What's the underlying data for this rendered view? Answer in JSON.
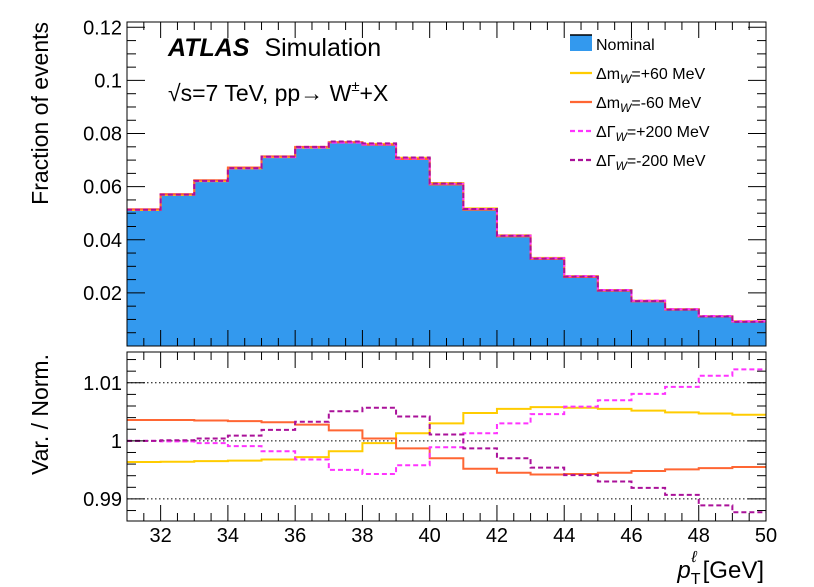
{
  "chart_data": [
    {
      "type": "histogram",
      "panel": "main",
      "ylabel": "Fraction of events",
      "ylim": [
        0.0,
        0.122
      ],
      "yticks": [
        0.02,
        0.04,
        0.06,
        0.08,
        0.1,
        0.12
      ],
      "ytick_labels": [
        "0.02",
        "0.04",
        "0.06",
        "0.08",
        "0.1",
        "0.12"
      ],
      "xlim": [
        31,
        50
      ],
      "bin_edges": [
        31,
        32,
        33,
        34,
        35,
        36,
        37,
        38,
        39,
        40,
        41,
        42,
        43,
        44,
        45,
        46,
        47,
        48,
        49,
        50
      ],
      "atlas_label": "ATLAS",
      "atlas_sub": "Simulation",
      "energy_sqrt": "√",
      "energy_label": "s=7 TeV, pp→ W",
      "energy_sup": "±",
      "energy_tail": "+X",
      "series": [
        {
          "name": "Nominal",
          "color": "#3399ee",
          "style": "fill",
          "values": [
            0.0513,
            0.057,
            0.0622,
            0.067,
            0.0712,
            0.0748,
            0.0765,
            0.0758,
            0.0705,
            0.061,
            0.0515,
            0.0415,
            0.033,
            0.0262,
            0.021,
            0.017,
            0.0138,
            0.0112,
            0.0092
          ]
        },
        {
          "name": "mW_plus",
          "color": "#ffcc00",
          "style": "solid",
          "values": [
            0.0512,
            0.0569,
            0.0621,
            0.0669,
            0.0711,
            0.0747,
            0.0767,
            0.0761,
            0.0709,
            0.0614,
            0.0518,
            0.0417,
            0.0332,
            0.0263,
            0.0211,
            0.0171,
            0.0139,
            0.0112,
            0.0093
          ]
        },
        {
          "name": "mW_minus",
          "color": "#ff6633",
          "style": "solid",
          "values": [
            0.0515,
            0.0572,
            0.0624,
            0.0672,
            0.0714,
            0.075,
            0.0767,
            0.0758,
            0.0704,
            0.0608,
            0.0513,
            0.0413,
            0.0328,
            0.026,
            0.0208,
            0.0168,
            0.0137,
            0.0111,
            0.0092
          ]
        },
        {
          "name": "Gamma_plus",
          "color": "#ff33ff",
          "style": "dashed",
          "values": [
            0.0513,
            0.057,
            0.0621,
            0.0669,
            0.0711,
            0.0747,
            0.0766,
            0.0759,
            0.0706,
            0.0611,
            0.0516,
            0.0416,
            0.0331,
            0.0263,
            0.0211,
            0.0171,
            0.0139,
            0.0113,
            0.0093
          ]
        },
        {
          "name": "Gamma_minus",
          "color": "#aa1199",
          "style": "dashed",
          "values": [
            0.0513,
            0.057,
            0.0622,
            0.067,
            0.0713,
            0.075,
            0.077,
            0.0763,
            0.071,
            0.0612,
            0.0516,
            0.0415,
            0.0329,
            0.0261,
            0.0209,
            0.0169,
            0.0137,
            0.0111,
            0.0091
          ]
        }
      ],
      "legend": [
        {
          "series": "Nominal",
          "label": "Nominal"
        },
        {
          "series": "mW_plus",
          "label": "Δm",
          "sub": "W",
          "tail": "=+60 MeV"
        },
        {
          "series": "mW_minus",
          "label": "Δm",
          "sub": "W",
          "tail": "=-60 MeV"
        },
        {
          "series": "Gamma_plus",
          "label": "ΔΓ",
          "sub": "W",
          "tail": "=+200 MeV"
        },
        {
          "series": "Gamma_minus",
          "label": "ΔΓ",
          "sub": "W",
          "tail": "=-200 MeV"
        }
      ],
      "legend_position": "top-right"
    },
    {
      "type": "ratio",
      "panel": "ratio",
      "ylabel": "Var. / Norm.",
      "ylim": [
        0.9862,
        1.0153
      ],
      "yticks": [
        0.99,
        1.0,
        1.01
      ],
      "ytick_labels": [
        "0.99",
        "1",
        "1.01"
      ],
      "gridlines": [
        0.99,
        1.0,
        1.01
      ],
      "xlim": [
        31,
        50
      ],
      "xticks": [
        32,
        34,
        36,
        38,
        40,
        42,
        44,
        46,
        48,
        50
      ],
      "xtick_labels": [
        "32",
        "34",
        "36",
        "38",
        "40",
        "42",
        "44",
        "46",
        "48",
        "50"
      ],
      "xlabel_main": "p",
      "xlabel_sup": "ℓ",
      "xlabel_sub": "T",
      "xlabel_unit": "[GeV]",
      "series": [
        {
          "name": "mW_plus",
          "color": "#ffcc00",
          "style": "solid",
          "values": [
            0.99635,
            0.9964,
            0.9965,
            0.9966,
            0.9968,
            0.9972,
            0.9982,
            0.9996,
            1.0013,
            1.003,
            1.0048,
            1.0055,
            1.0058,
            1.0057,
            1.0055,
            1.0052,
            1.0049,
            1.0047,
            1.0045
          ]
        },
        {
          "name": "mW_minus",
          "color": "#ff6633",
          "style": "solid",
          "values": [
            1.0036,
            1.0036,
            1.0035,
            1.0034,
            1.0032,
            1.0028,
            1.0018,
            1.0004,
            0.9987,
            0.997,
            0.9952,
            0.9945,
            0.9942,
            0.9943,
            0.9945,
            0.9948,
            0.9951,
            0.9953,
            0.9955
          ]
        },
        {
          "name": "Gamma_plus",
          "color": "#ff33ff",
          "style": "dashed",
          "values": [
            1.0,
            0.9999,
            0.9996,
            0.9991,
            0.9982,
            0.9968,
            0.995,
            0.9943,
            0.9958,
            0.9989,
            1.0013,
            1.003,
            1.0046,
            1.0059,
            1.007,
            1.0081,
            1.0093,
            1.0112,
            1.0123
          ]
        },
        {
          "name": "Gamma_minus",
          "color": "#aa1199",
          "style": "dashed",
          "values": [
            1.0,
            1.0001,
            1.0004,
            1.0009,
            1.0019,
            1.0033,
            1.0051,
            1.0057,
            1.0042,
            1.0011,
            0.9987,
            0.997,
            0.9954,
            0.9941,
            0.993,
            0.9919,
            0.9907,
            0.9889,
            0.9877
          ]
        }
      ]
    }
  ]
}
